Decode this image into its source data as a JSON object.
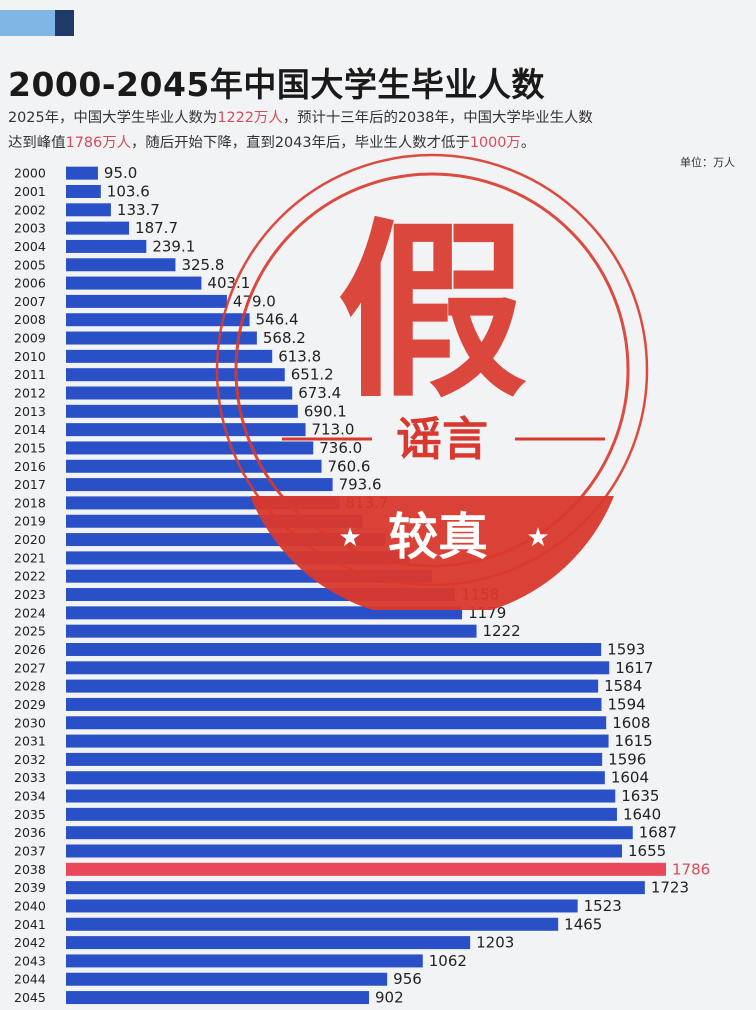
{
  "title": "2000-2045年中国大学生毕业人数",
  "subtitle": {
    "line1_a": "2025年，中国大学生毕业人数为",
    "line1_b": "1222万人",
    "line1_c": "，预计十三年后的2038年，中国大学毕业生人数",
    "line2_a": "达到峰值",
    "line2_b": "1786万人",
    "line2_c": "，随后开始下降，直到2043年后，毕业生人数才低于",
    "line2_d": "1000万",
    "line2_e": "。"
  },
  "unit_label": "单位：万人",
  "stamp": {
    "big_char": "假",
    "word": "谣言",
    "brand": "较真"
  },
  "colors": {
    "bar": "#2a50c8",
    "highlight_bar": "#e8485a",
    "highlight_text": "#d94b5c",
    "stamp_red": "#d9382c"
  },
  "chart_data": {
    "type": "bar",
    "orientation": "horizontal",
    "categories": [
      "2000",
      "2001",
      "2002",
      "2003",
      "2004",
      "2005",
      "2006",
      "2007",
      "2008",
      "2009",
      "2010",
      "2011",
      "2012",
      "2013",
      "2014",
      "2015",
      "2016",
      "2017",
      "2018",
      "2019",
      "2020",
      "2021",
      "2022",
      "2023",
      "2024",
      "2025",
      "2026",
      "2027",
      "2028",
      "2029",
      "2030",
      "2031",
      "2032",
      "2033",
      "2034",
      "2035",
      "2036",
      "2037",
      "2038",
      "2039",
      "2040",
      "2041",
      "2042",
      "2043",
      "2044",
      "2045"
    ],
    "values": [
      95.0,
      103.6,
      133.7,
      187.7,
      239.1,
      325.8,
      403.1,
      479.0,
      546.4,
      568.2,
      613.8,
      651.2,
      673.4,
      690.1,
      713.0,
      736.0,
      760.6,
      793.6,
      813.7,
      null,
      null,
      null,
      null,
      1158,
      1179,
      1222,
      1593,
      1617,
      1584,
      1594,
      1608,
      1615,
      1596,
      1604,
      1635,
      1640,
      1687,
      1655,
      1786,
      1723,
      1523,
      1465,
      1203,
      1062,
      956,
      902
    ],
    "value_labels": [
      "95.0",
      "103.6",
      "133.7",
      "187.7",
      "239.1",
      "325.8",
      "403.1",
      "479.0",
      "546.4",
      "568.2",
      "613.8",
      "651.2",
      "673.4",
      "690.1",
      "713.0",
      "736.0",
      "760.6",
      "793.6",
      "813.7",
      "",
      "",
      "",
      "",
      "1158",
      "1179",
      "1222",
      "1593",
      "1617",
      "1584",
      "1594",
      "1608",
      "1615",
      "1596",
      "1604",
      "1635",
      "1640",
      "1687",
      "1655",
      "1786",
      "1723",
      "1523",
      "1465",
      "1203",
      "1062",
      "956",
      "902"
    ],
    "highlight_category": "2038",
    "xlim": [
      0,
      1786
    ],
    "grid": false,
    "note": "2019-2022 bars hidden behind stamp"
  }
}
